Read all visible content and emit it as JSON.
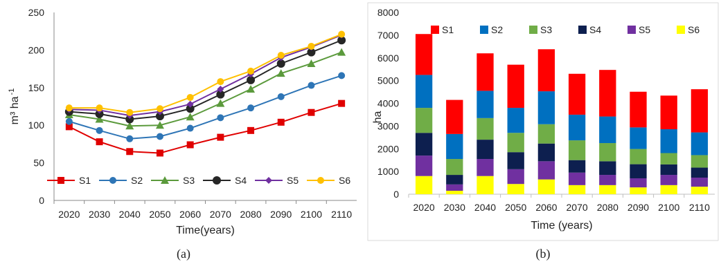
{
  "chart_data": [
    {
      "panel_label": "(a)",
      "type": "line",
      "title": "",
      "xlabel": "Time(years)",
      "ylabel": "m³ ha",
      "ylabel_sup": "-1",
      "ylim": [
        0,
        250
      ],
      "yticks": [
        0,
        50,
        100,
        150,
        200,
        250
      ],
      "categories": [
        "2020",
        "2030",
        "2040",
        "2050",
        "2060",
        "2070",
        "2080",
        "2090",
        "2100",
        "2110"
      ],
      "grid": false,
      "legend_position": "bottom",
      "series": [
        {
          "name": "S1",
          "color": "#e00000",
          "marker": "square",
          "values": [
            98,
            78,
            65,
            63,
            74,
            84,
            93,
            104,
            117,
            129
          ]
        },
        {
          "name": "S2",
          "color": "#2e75b6",
          "marker": "circle",
          "values": [
            105,
            93,
            82,
            85,
            96,
            110,
            123,
            138,
            153,
            166
          ]
        },
        {
          "name": "S3",
          "color": "#5b9a3c",
          "marker": "triangle",
          "values": [
            114,
            108,
            99,
            100,
            111,
            129,
            148,
            169,
            182,
            197
          ]
        },
        {
          "name": "S4",
          "color": "#262626",
          "marker": "circle",
          "values": [
            118,
            115,
            108,
            112,
            122,
            141,
            160,
            182,
            197,
            213
          ]
        },
        {
          "name": "S5",
          "color": "#7030a0",
          "marker": "diamond",
          "values": [
            121,
            120,
            113,
            118,
            128,
            148,
            168,
            190,
            204,
            220
          ]
        },
        {
          "name": "S6",
          "color": "#ffc000",
          "marker": "circle",
          "values": [
            123,
            123,
            117,
            122,
            137,
            158,
            172,
            193,
            205,
            221
          ]
        }
      ]
    },
    {
      "panel_label": "(b)",
      "type": "bar",
      "stacked": true,
      "title": "",
      "xlabel": "Time (years)",
      "ylabel": "ha",
      "ylim": [
        0,
        8000
      ],
      "yticks": [
        0,
        1000,
        2000,
        3000,
        4000,
        5000,
        6000,
        7000,
        8000
      ],
      "categories": [
        "2020",
        "2030",
        "2040",
        "2050",
        "2060",
        "2070",
        "2080",
        "2090",
        "2100",
        "2110"
      ],
      "grid": false,
      "legend_position": "top",
      "series": [
        {
          "name": "S6",
          "color": "#ffff00",
          "values": [
            800,
            150,
            800,
            450,
            650,
            400,
            400,
            300,
            400,
            330
          ]
        },
        {
          "name": "S5",
          "color": "#7030a0",
          "values": [
            900,
            280,
            750,
            650,
            800,
            550,
            450,
            400,
            450,
            400
          ]
        },
        {
          "name": "S4",
          "color": "#0d1f4f",
          "values": [
            1000,
            420,
            850,
            750,
            780,
            550,
            600,
            620,
            460,
            440
          ]
        },
        {
          "name": "S3",
          "color": "#70ad47",
          "values": [
            1100,
            700,
            950,
            850,
            850,
            870,
            800,
            670,
            500,
            550
          ]
        },
        {
          "name": "S2",
          "color": "#0070c0",
          "values": [
            1450,
            1100,
            1200,
            1100,
            1450,
            1130,
            1170,
            950,
            1050,
            1000
          ]
        },
        {
          "name": "S1",
          "color": "#ff0000",
          "values": [
            1800,
            1500,
            1650,
            1900,
            1850,
            1800,
            2050,
            1570,
            1480,
            1900
          ]
        }
      ],
      "legend_order": [
        "S1",
        "S2",
        "S3",
        "S4",
        "S5",
        "S6"
      ]
    }
  ]
}
